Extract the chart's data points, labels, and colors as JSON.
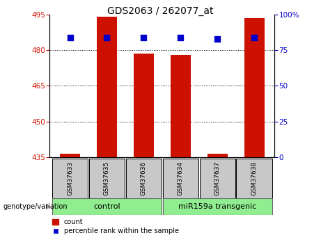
{
  "title": "GDS2063 / 262077_at",
  "samples": [
    "GSM37633",
    "GSM37635",
    "GSM37636",
    "GSM37634",
    "GSM37637",
    "GSM37638"
  ],
  "count_values": [
    436.5,
    494.0,
    478.5,
    478.0,
    436.5,
    493.5
  ],
  "percentile_values": [
    84,
    84,
    84,
    84,
    83,
    84
  ],
  "ylim_left": [
    435,
    495
  ],
  "ylim_right": [
    0,
    100
  ],
  "yticks_left": [
    435,
    450,
    465,
    480,
    495
  ],
  "yticks_right": [
    0,
    25,
    50,
    75,
    100
  ],
  "bar_color": "#cc1100",
  "dot_color": "#0000cc",
  "bar_bottom": 435,
  "grid_lines": [
    450,
    465,
    480
  ],
  "control_label": "control",
  "transgenic_label": "miR159a transgenic",
  "genotype_label": "genotype/variation",
  "legend_count": "count",
  "legend_percentile": "percentile rank within the sample",
  "tick_label_color_left": "#cc1100",
  "tick_label_color_right": "#0000cc",
  "bar_width": 0.55,
  "dot_size": 28,
  "label_box_color": "#c8c8c8",
  "geno_box_color": "#90ee90",
  "arrow_color": "#a0a0a0"
}
